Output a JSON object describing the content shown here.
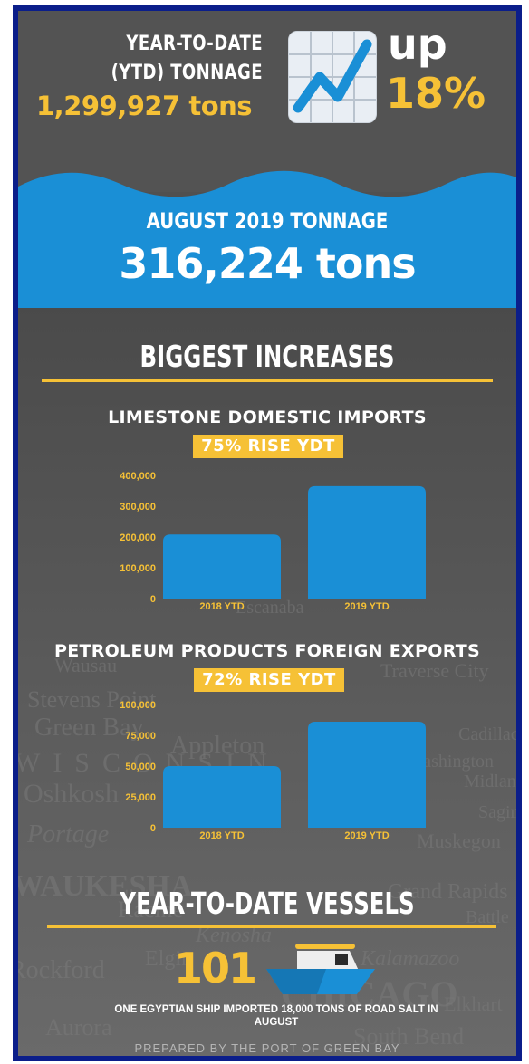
{
  "ytd": {
    "line1": "YEAR-TO-DATE",
    "line2": "(YTD) TONNAGE",
    "value": "1,299,927 tons",
    "change_word": "up",
    "change_percent": "18%"
  },
  "icon": "chart-increasing-icon",
  "august": {
    "title": "AUGUST 2019 TONNAGE",
    "value": "316,224 tons"
  },
  "increases_heading": "BIGGEST INCREASES",
  "map_words": [
    "Stevens Point",
    "Green Bay",
    "Appleton",
    "Oshkosh",
    "Portage",
    "WAUKESHA",
    "Racine",
    "Kenosha",
    "Elgin",
    "Rockford",
    "Aurora",
    "CHICAGO",
    "Kalamazoo",
    "Muskegon",
    "Grand Rapids",
    "Battle",
    "Elkhart",
    "South Bend",
    "Midland",
    "Saginaw",
    "Cadillac",
    "Traverse City",
    "Escanaba",
    "Wausau",
    "WISCONSIN",
    "Washington"
  ],
  "chart_data": [
    {
      "type": "bar",
      "title": "LIMESTONE DOMESTIC IMPORTS",
      "badge": "75% RISE YDT",
      "categories": [
        "2018 YTD",
        "2019 YTD"
      ],
      "values": [
        208000,
        365000
      ],
      "ylim": [
        0,
        400000
      ],
      "yticks": [
        0,
        100000,
        200000,
        300000,
        400000
      ],
      "ytick_labels": [
        "0",
        "100,000",
        "200,000",
        "300,000",
        "400,000"
      ],
      "bar_color": "#1a8fd6",
      "grid": false
    },
    {
      "type": "bar",
      "title": "PETROLEUM PRODUCTS FOREIGN EXPORTS",
      "badge": "72% RISE YDT",
      "categories": [
        "2018 YTD",
        "2019 YTD"
      ],
      "values": [
        50000,
        86000
      ],
      "ylim": [
        0,
        100000
      ],
      "yticks": [
        0,
        25000,
        50000,
        75000,
        100000
      ],
      "ytick_labels": [
        "0",
        "25,000",
        "50,000",
        "75,000",
        "100,000"
      ],
      "bar_color": "#1a8fd6",
      "grid": false
    }
  ],
  "vessels": {
    "heading": "YEAR-TO-DATE VESSELS",
    "count": "101",
    "icon": "ship-icon",
    "note": "ONE EGYPTIAN SHIP IMPORTED 18,000 TONS OF ROAD SALT IN AUGUST"
  },
  "credit": "PREPARED BY THE PORT OF GREEN BAY",
  "colors": {
    "accent_yellow": "#f6c136",
    "accent_blue": "#1a8fd6",
    "border_navy": "#0b1e8a",
    "background_gray": "#535353"
  }
}
